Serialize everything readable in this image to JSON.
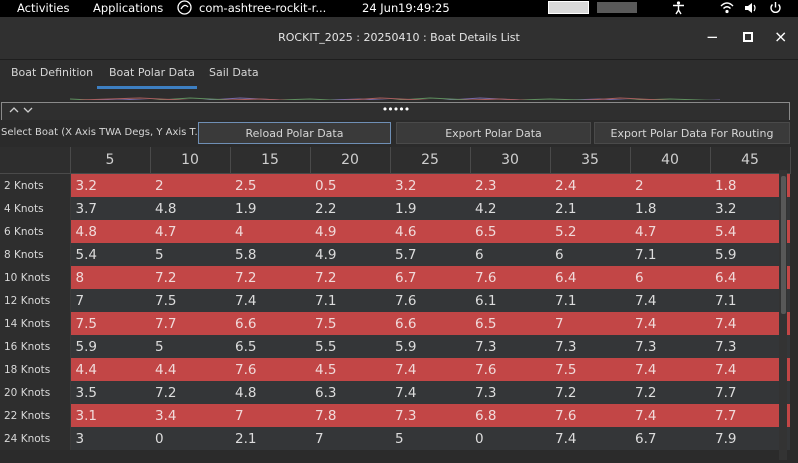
{
  "topbar": {
    "activities": "Activities",
    "applications": "Applications",
    "app_name": "com-ashtree-rockit-r...",
    "date": "24 Jun",
    "time": "19:49:25"
  },
  "window": {
    "title": "ROCKIT_2025 : 20250410 : Boat Details List",
    "minimize": "−",
    "maximize": "□",
    "close": "×"
  },
  "tabs": [
    {
      "label": "Boat Definition"
    },
    {
      "label": "Boat Polar Data"
    },
    {
      "label": "Sail Data"
    }
  ],
  "split": {
    "arrows": "^ v",
    "handle": "•••••"
  },
  "toolbar": {
    "select_label": "Select Boat (X Axis TWA Degs, Y Axis T...",
    "reload": "Reload Polar Data",
    "export": "Export Polar Data",
    "export_routing": "Export Polar Data For Routing"
  },
  "table": {
    "columns": [
      "5",
      "10",
      "15",
      "20",
      "25",
      "30",
      "35",
      "40",
      "45"
    ],
    "rows": [
      {
        "label": "2 Knots",
        "values": [
          "3.2",
          "2",
          "2.5",
          "0.5",
          "3.2",
          "2.3",
          "2.4",
          "2",
          "1.8"
        ]
      },
      {
        "label": "4 Knots",
        "values": [
          "3.7",
          "4.8",
          "1.9",
          "2.2",
          "1.9",
          "4.2",
          "2.1",
          "1.8",
          "3.2"
        ]
      },
      {
        "label": "6 Knots",
        "values": [
          "4.8",
          "4.7",
          "4",
          "4.9",
          "4.6",
          "6.5",
          "5.2",
          "4.7",
          "5.4"
        ]
      },
      {
        "label": "8 Knots",
        "values": [
          "5.4",
          "5",
          "5.8",
          "4.9",
          "5.7",
          "6",
          "6",
          "7.1",
          "5.9"
        ]
      },
      {
        "label": "10 Knots",
        "values": [
          "8",
          "7.2",
          "7.2",
          "7.2",
          "6.7",
          "7.6",
          "6.4",
          "6",
          "6.4"
        ]
      },
      {
        "label": "12 Knots",
        "values": [
          "7",
          "7.5",
          "7.4",
          "7.1",
          "7.6",
          "6.1",
          "7.1",
          "7.4",
          "7.1"
        ]
      },
      {
        "label": "14 Knots",
        "values": [
          "7.5",
          "7.7",
          "6.6",
          "7.5",
          "6.6",
          "6.5",
          "7",
          "7.4",
          "7.4"
        ]
      },
      {
        "label": "16 Knots",
        "values": [
          "5.9",
          "5",
          "6.5",
          "5.5",
          "5.9",
          "7.3",
          "7.3",
          "7.3",
          "7.3"
        ]
      },
      {
        "label": "18 Knots",
        "values": [
          "4.4",
          "4.4",
          "7.6",
          "4.5",
          "7.4",
          "7.6",
          "7.5",
          "7.4",
          "7.4"
        ]
      },
      {
        "label": "20 Knots",
        "values": [
          "3.5",
          "7.2",
          "4.8",
          "6.3",
          "7.4",
          "7.3",
          "7.2",
          "7.2",
          "7.7"
        ]
      },
      {
        "label": "22 Knots",
        "values": [
          "3.1",
          "3.4",
          "7",
          "7.8",
          "7.3",
          "6.8",
          "7.6",
          "7.4",
          "7.7"
        ]
      },
      {
        "label": "24 Knots",
        "values": [
          "3",
          "0",
          "2.1",
          "7",
          "5",
          "0",
          "7.4",
          "6.7",
          "7.9"
        ]
      }
    ]
  }
}
